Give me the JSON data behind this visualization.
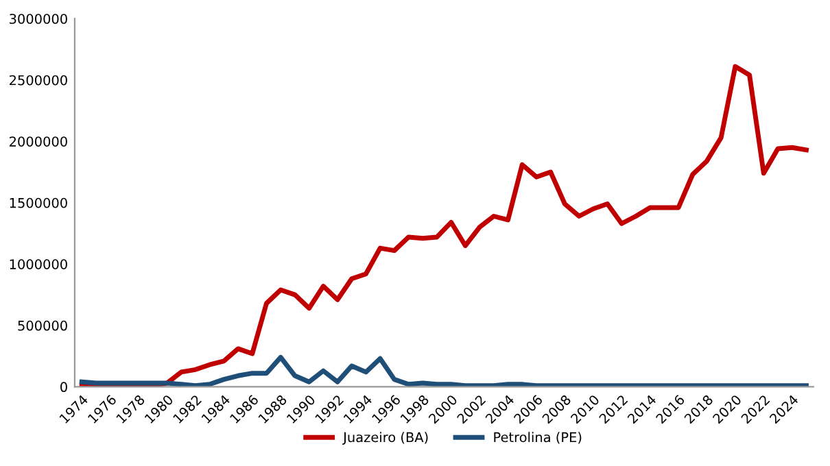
{
  "chart_data": {
    "type": "line",
    "categories": [
      "1974",
      null,
      "1976",
      null,
      "1978",
      null,
      "1980",
      null,
      "1982",
      null,
      "1984",
      null,
      "1986",
      null,
      "1988",
      null,
      "1990",
      null,
      "1992",
      null,
      "1994",
      null,
      "1996",
      null,
      "1998",
      null,
      "2000",
      null,
      "2002",
      null,
      "2004",
      null,
      "2006",
      null,
      "2008",
      null,
      "2010",
      null,
      "2012",
      null,
      "2014",
      null,
      "2016",
      null,
      "2018",
      null,
      "2020",
      null,
      "2022",
      null,
      "2024",
      null
    ],
    "series": [
      {
        "name": "Juazeiro (BA)",
        "color": "#c00000",
        "values": [
          10000,
          10000,
          10000,
          0,
          0,
          10000,
          30000,
          120000,
          140000,
          180000,
          210000,
          310000,
          270000,
          680000,
          790000,
          750000,
          640000,
          820000,
          710000,
          880000,
          920000,
          1130000,
          1110000,
          1220000,
          1210000,
          1220000,
          1340000,
          1150000,
          1300000,
          1390000,
          1360000,
          1810000,
          1710000,
          1750000,
          1490000,
          1390000,
          1450000,
          1490000,
          1330000,
          1390000,
          1460000,
          1460000,
          1460000,
          1730000,
          1840000,
          2030000,
          2610000,
          2540000,
          1740000,
          1940000,
          1950000,
          1930000
        ]
      },
      {
        "name": "Petrolina (PE)",
        "color": "#1f4e79",
        "values": [
          40000,
          30000,
          30000,
          30000,
          30000,
          30000,
          30000,
          20000,
          10000,
          20000,
          60000,
          90000,
          110000,
          110000,
          240000,
          90000,
          40000,
          130000,
          40000,
          170000,
          120000,
          230000,
          60000,
          20000,
          30000,
          20000,
          20000,
          10000,
          10000,
          10000,
          20000,
          20000,
          10000,
          10000,
          10000,
          10000,
          10000,
          10000,
          10000,
          10000,
          10000,
          10000,
          10000,
          10000,
          10000,
          10000,
          10000,
          10000,
          10000,
          10000,
          10000,
          10000
        ]
      }
    ],
    "ylim": [
      0,
      3000000
    ],
    "yticks": [
      0,
      500000,
      1000000,
      1500000,
      2000000,
      2500000,
      3000000
    ],
    "grid": false,
    "legend": "bottom",
    "marker": "none",
    "line_style": "solid"
  }
}
